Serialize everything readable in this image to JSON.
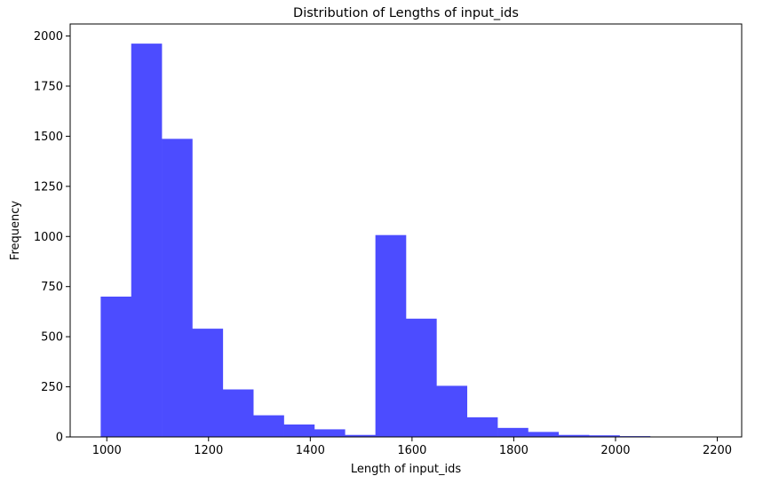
{
  "chart_data": {
    "type": "bar",
    "title": "Distribution of Lengths of input_ids",
    "xlabel": "Length of input_ids",
    "ylabel": "Frequency",
    "bar_color": "#4c4cff",
    "bin_edges": [
      988,
      1048,
      1108,
      1168,
      1228,
      1288,
      1348,
      1408,
      1468,
      1528,
      1588,
      1648,
      1708,
      1768,
      1828,
      1888,
      1948,
      2008,
      2068,
      2128,
      2188
    ],
    "values": [
      700,
      1962,
      1487,
      540,
      237,
      108,
      62,
      38,
      10,
      1007,
      590,
      255,
      98,
      45,
      25,
      10,
      8,
      4,
      2,
      1
    ],
    "xlim": [
      928,
      2248
    ],
    "ylim": [
      0,
      2060
    ],
    "xticks": [
      1000,
      1200,
      1400,
      1600,
      1800,
      2000,
      2200
    ],
    "yticks": [
      0,
      250,
      500,
      750,
      1000,
      1250,
      1500,
      1750,
      2000
    ],
    "grid": false,
    "legend": "none"
  }
}
